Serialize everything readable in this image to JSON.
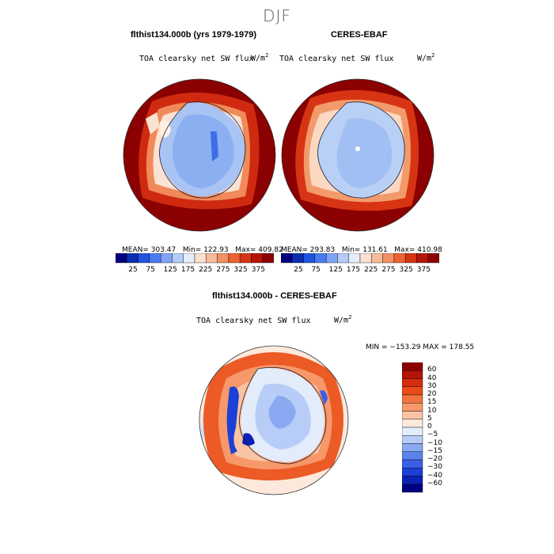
{
  "figure": {
    "season": "DJF"
  },
  "panel_left": {
    "title": "flthist134.000b (yrs 1979-1979)",
    "variable": "TOA clearsky net SW flux",
    "units": "W/m",
    "units_sup": "2",
    "stats": {
      "mean": "MEAN= 303.47",
      "min": "Min= 122.93",
      "max": "Max= 409.82"
    }
  },
  "panel_right": {
    "title": "CERES-EBAF",
    "variable": "TOA clearsky net SW flux",
    "units": "W/m",
    "units_sup": "2",
    "stats": {
      "mean": "MEAN= 293.83",
      "min": "Min= 131.61",
      "max": "Max= 410.98"
    }
  },
  "panel_diff": {
    "title": "flthist134.000b - CERES-EBAF",
    "variable": "TOA clearsky net SW flux",
    "units": "W/m",
    "units_sup": "2",
    "minmax": "MIN = −153.29  MAX = 178.55"
  },
  "colorbar_abs": {
    "colors": [
      "#00007f",
      "#0a2fb3",
      "#1f55e0",
      "#4a7cf0",
      "#7fa4f5",
      "#b4ccf7",
      "#e6eefc",
      "#fce1d0",
      "#f8bc9c",
      "#f29167",
      "#ea6331",
      "#d73414",
      "#b51408",
      "#8b0000"
    ],
    "labels": [
      "25",
      "75",
      "125",
      "175",
      "225",
      "275",
      "325",
      "375"
    ]
  },
  "colorbar_diff": {
    "colors": [
      "#8b0000",
      "#b51408",
      "#d52d0d",
      "#ea4b1b",
      "#f2733f",
      "#f7986a",
      "#fac3a4",
      "#fde9dc",
      "#e3ecfb",
      "#b7cdf7",
      "#89aaf2",
      "#5c83ec",
      "#3960e4",
      "#1c3fd6",
      "#0b22b5",
      "#00007f"
    ],
    "labels": [
      "60",
      "40",
      "30",
      "20",
      "15",
      "10",
      "5",
      "0",
      "−5",
      "−10",
      "−15",
      "−20",
      "−30",
      "−40",
      "−60"
    ]
  }
}
